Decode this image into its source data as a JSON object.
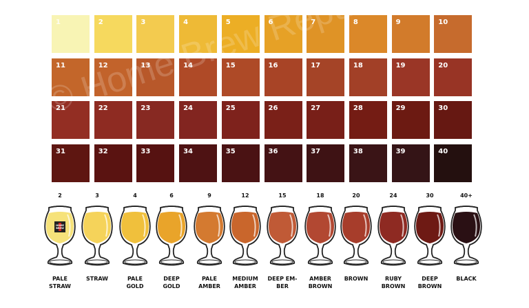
{
  "srm_grid": {
    "numbers": [
      "1",
      "2",
      "3",
      "4",
      "5",
      "6",
      "7",
      "8",
      "9",
      "10",
      "11",
      "12",
      "13",
      "14",
      "15",
      "16",
      "17",
      "18",
      "19",
      "20",
      "21",
      "22",
      "23",
      "24",
      "25",
      "26",
      "27",
      "28",
      "29",
      "30",
      "31",
      "32",
      "33",
      "34",
      "35",
      "36",
      "37",
      "38",
      "39",
      "40"
    ],
    "colors": [
      "#F8F4B4",
      "#F6D95E",
      "#F3CB4F",
      "#EEBA36",
      "#ECAE25",
      "#E6A126",
      "#DF9326",
      "#DB8829",
      "#D27B2B",
      "#C66B2D",
      "#C3662A",
      "#C2632B",
      "#B8582A",
      "#AF4A27",
      "#AE4A27",
      "#A84426",
      "#A54427",
      "#A24027",
      "#9A3626",
      "#983425",
      "#932E23",
      "#8E2B22",
      "#872922",
      "#822520",
      "#7E221C",
      "#7A2018",
      "#781F18",
      "#741C14",
      "#6C1A12",
      "#661812",
      "#5E1611",
      "#5A1311",
      "#561211",
      "#4E1213",
      "#4A1213",
      "#441214",
      "#3E1214",
      "#3A1416",
      "#341416",
      "#24100F"
    ]
  },
  "watermark": "© Home Brew Republic",
  "glasses": [
    {
      "srm": "2",
      "name": "PALE\nSTRAW",
      "color": "#F6E27A",
      "logo": "HOME BREW REPUBLIC"
    },
    {
      "srm": "3",
      "name": "STRAW",
      "color": "#F5D35A"
    },
    {
      "srm": "4",
      "name": "PALE\nGOLD",
      "color": "#F0C03C"
    },
    {
      "srm": "6",
      "name": "DEEP\nGOLD",
      "color": "#E9A42A"
    },
    {
      "srm": "9",
      "name": "PALE\nAMBER",
      "color": "#D47A30"
    },
    {
      "srm": "12",
      "name": "MEDIUM\nAMBER",
      "color": "#C9662C"
    },
    {
      "srm": "15",
      "name": "DEEP EM-\nBER",
      "color": "#C05A36"
    },
    {
      "srm": "18",
      "name": "AMBER\nBROWN",
      "color": "#B24832"
    },
    {
      "srm": "20",
      "name": "BROWN",
      "color": "#A73D2B"
    },
    {
      "srm": "24",
      "name": "RUBY\nBROWN",
      "color": "#8E2A22"
    },
    {
      "srm": "30",
      "name": "DEEP\nBROWN",
      "color": "#6E1A14"
    },
    {
      "srm": "40+",
      "name": "BLACK",
      "color": "#2A1014"
    }
  ]
}
